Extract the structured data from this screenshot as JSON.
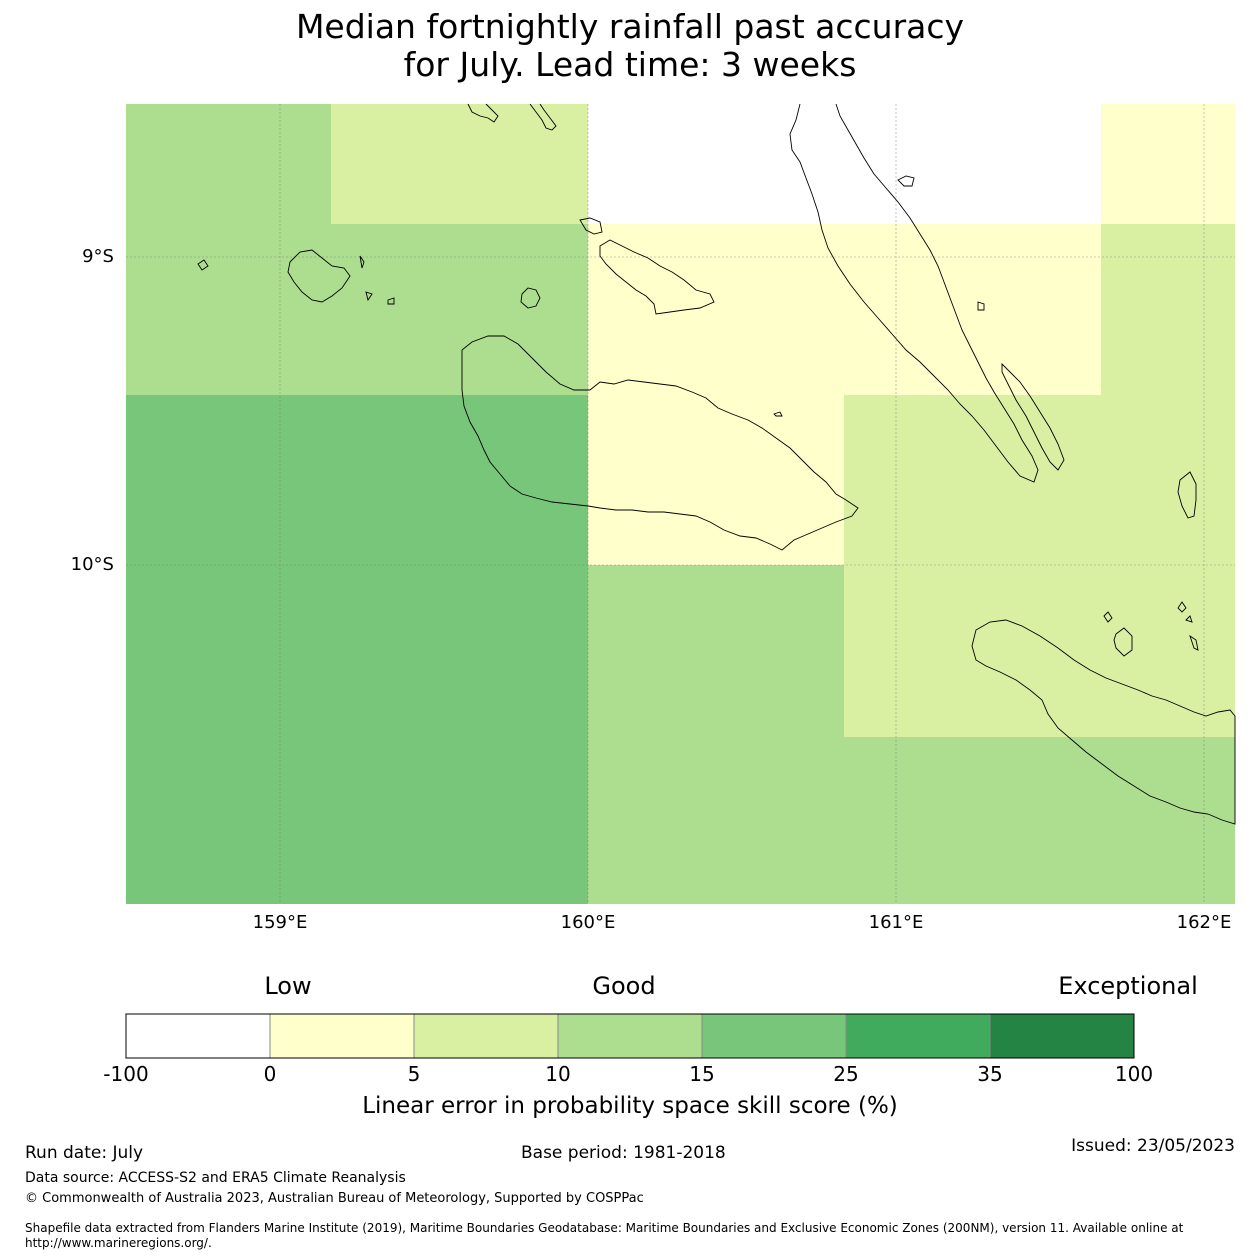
{
  "title": {
    "line1": "Median fortnightly rainfall past accuracy",
    "line2": "for July. Lead time: 3 weeks"
  },
  "map": {
    "lat_labels": [
      "9°S",
      "10°S"
    ],
    "lon_labels": [
      "159°E",
      "160°E",
      "161°E",
      "162°E"
    ],
    "colors": {
      "c_neg": "#ffffff",
      "c_0_5": "#ffffcc",
      "c_5_10": "#d9f0a3",
      "c_10_15": "#addd8e",
      "c_15_25": "#78c679",
      "c_25_35": "#41ab5d",
      "c_35_100": "#238443"
    }
  },
  "colorbar": {
    "categories": [
      "Low",
      "Good",
      "Exceptional"
    ],
    "ticks": [
      "-100",
      "0",
      "5",
      "10",
      "15",
      "25",
      "35",
      "100"
    ],
    "label": "Linear error in probability space skill score (%)"
  },
  "footer": {
    "run_date": "Run date: July",
    "base_period": "Base period: 1981-2018",
    "issued": "Issued: 23/05/2023",
    "data_source": "Data source: ACCESS-S2 and ERA5 Climate Reanalysis",
    "copyright": "© Commonwealth of Australia 2023, Australian Bureau of Meteorology, Supported by COSPPac",
    "shapefile_line1": "Shapefile data extracted from Flanders Marine Institute (2019), Maritime Boundaries Geodatabase: Maritime Boundaries and Exclusive Economic Zones (200NM), version 11. Available online at",
    "shapefile_line2": "http://www.marineregions.org/."
  }
}
